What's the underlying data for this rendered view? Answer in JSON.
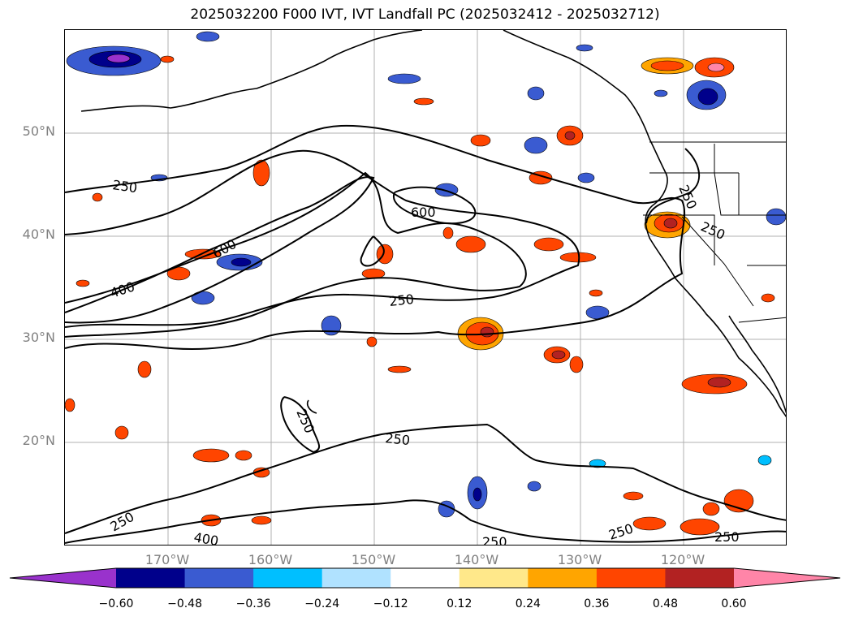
{
  "title": "2025032200 F000 IVT, IVT Landfall PC (2025032412 - 2025032712)",
  "map": {
    "lat_labels": [
      "50°N",
      "40°N",
      "30°N",
      "20°N"
    ],
    "lon_labels": [
      "170°W",
      "160°W",
      "150°W",
      "140°W",
      "130°W",
      "120°W"
    ],
    "contour_levels": [
      "250",
      "400",
      "600"
    ],
    "contour_labels": {
      "c250_a": "250",
      "c250_b": "250",
      "c250_c": "250",
      "c250_d": "250",
      "c250_e": "250",
      "c250_f": "250",
      "c250_g": "250",
      "c250_h": "250",
      "c250_i": "250",
      "c250_j": "250",
      "c400_a": "400",
      "c400_b": "400",
      "c600_a": "600",
      "c600_b": "600"
    }
  },
  "colorbar": {
    "ticks": [
      "−0.60",
      "−0.48",
      "−0.36",
      "−0.24",
      "−0.12",
      "0.12",
      "0.24",
      "0.36",
      "0.48",
      "0.60"
    ],
    "colors": [
      "#9932cc",
      "#00008b",
      "#3a5bd1",
      "#00bfff",
      "#b0e2ff",
      "#ffffff",
      "#ffe88a",
      "#ffa500",
      "#ff4500",
      "#b22222",
      "#ff85a8"
    ],
    "extend": "both"
  }
}
